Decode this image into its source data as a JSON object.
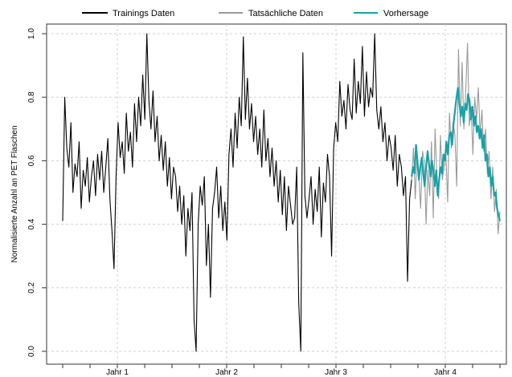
{
  "chart_data": {
    "type": "line",
    "title": "",
    "xlabel": "",
    "ylabel": "Normalisierte Anzahl an PET Flaschen",
    "ylim": [
      0,
      1
    ],
    "yticks": [
      "0.0",
      "0.2",
      "0.4",
      "0.6",
      "0.8",
      "1.0"
    ],
    "xlim": [
      0,
      208
    ],
    "xticks": [
      {
        "label": "Jahr 1",
        "x": 26
      },
      {
        "label": "Jahr 2",
        "x": 78
      },
      {
        "label": "Jahr 3",
        "x": 130
      },
      {
        "label": "Jahr 4",
        "x": 182
      }
    ],
    "grid": true,
    "legend_position": "top",
    "series": [
      {
        "name": "Trainings Daten",
        "color": "#000000",
        "x_start": 0,
        "values": [
          0.41,
          0.8,
          0.64,
          0.58,
          0.72,
          0.5,
          0.59,
          0.55,
          0.66,
          0.45,
          0.57,
          0.52,
          0.61,
          0.47,
          0.55,
          0.6,
          0.49,
          0.62,
          0.54,
          0.63,
          0.5,
          0.58,
          0.67,
          0.48,
          0.38,
          0.26,
          0.55,
          0.72,
          0.61,
          0.66,
          0.56,
          0.75,
          0.63,
          0.69,
          0.58,
          0.78,
          0.66,
          0.8,
          0.71,
          0.87,
          0.73,
          1.0,
          0.79,
          0.7,
          0.82,
          0.66,
          0.74,
          0.6,
          0.68,
          0.57,
          0.66,
          0.52,
          0.61,
          0.48,
          0.58,
          0.55,
          0.44,
          0.52,
          0.4,
          0.49,
          0.3,
          0.45,
          0.38,
          0.5,
          0.1,
          0.0,
          0.4,
          0.52,
          0.46,
          0.55,
          0.27,
          0.4,
          0.17,
          0.45,
          0.5,
          0.58,
          0.42,
          0.52,
          0.38,
          0.47,
          0.35,
          0.62,
          0.7,
          0.58,
          0.75,
          0.64,
          0.8,
          0.71,
          0.99,
          0.73,
          0.86,
          0.7,
          0.78,
          0.66,
          0.74,
          0.62,
          0.7,
          0.58,
          0.76,
          0.6,
          0.67,
          0.55,
          0.64,
          0.52,
          0.6,
          0.47,
          0.57,
          0.43,
          0.55,
          0.38,
          0.52,
          0.46,
          0.4,
          0.42,
          0.58,
          0.15,
          0.0,
          0.94,
          0.49,
          0.42,
          0.48,
          0.55,
          0.4,
          0.51,
          0.44,
          0.58,
          0.36,
          0.53,
          0.47,
          0.62,
          0.55,
          0.3,
          0.64,
          0.72,
          0.66,
          0.85,
          0.74,
          0.79,
          0.7,
          0.84,
          0.76,
          0.73,
          0.92,
          0.75,
          0.85,
          0.78,
          0.96,
          0.74,
          0.88,
          0.77,
          0.83,
          0.8,
          1.0,
          0.76,
          0.7,
          0.77,
          0.66,
          0.72,
          0.6,
          0.68,
          0.64,
          0.57,
          0.68,
          0.52,
          0.62,
          0.58,
          0.49,
          0.55,
          0.22,
          0.48,
          0.54
        ]
      },
      {
        "name": "Tatsächliche Daten",
        "color": "#999999",
        "x_start": 166,
        "values": [
          0.54,
          0.64,
          0.48,
          0.62,
          0.55,
          0.45,
          0.63,
          0.6,
          0.4,
          0.57,
          0.49,
          0.66,
          0.42,
          0.7,
          0.55,
          0.48,
          0.68,
          0.54,
          0.58,
          0.62,
          0.47,
          0.75,
          0.64,
          0.72,
          0.68,
          0.52,
          0.95,
          0.71,
          0.91,
          0.7,
          0.82,
          0.97,
          0.71,
          0.77,
          0.62,
          0.8,
          0.73,
          0.83,
          0.68,
          0.76,
          0.63,
          0.7,
          0.56,
          0.63,
          0.48,
          0.58,
          0.44,
          0.51,
          0.37,
          0.44
        ]
      },
      {
        "name": "Vorhersage",
        "color": "#17a2a8",
        "x_start": 166,
        "values": [
          0.55,
          0.58,
          0.56,
          0.65,
          0.6,
          0.54,
          0.58,
          0.61,
          0.56,
          0.52,
          0.58,
          0.63,
          0.59,
          0.55,
          0.6,
          0.57,
          0.52,
          0.57,
          0.49,
          0.54,
          0.58,
          0.56,
          0.62,
          0.6,
          0.66,
          0.62,
          0.68,
          0.69,
          0.65,
          0.72,
          0.76,
          0.8,
          0.83,
          0.78,
          0.74,
          0.77,
          0.72,
          0.78,
          0.76,
          0.81,
          0.79,
          0.73,
          0.77,
          0.71,
          0.74,
          0.69,
          0.71,
          0.67,
          0.7,
          0.64,
          0.68,
          0.6,
          0.62,
          0.55,
          0.58,
          0.52,
          0.55,
          0.49,
          0.5,
          0.45,
          0.43,
          0.41
        ]
      }
    ]
  }
}
